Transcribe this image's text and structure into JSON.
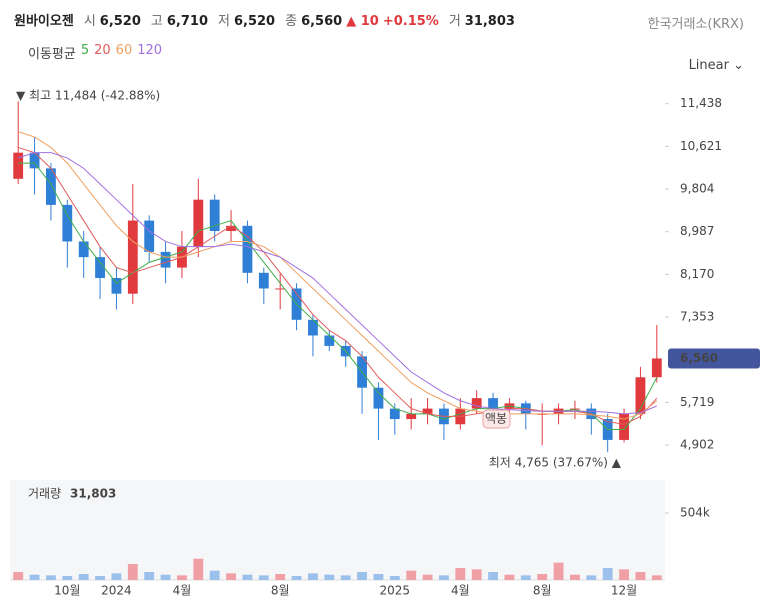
{
  "header": {
    "name": "원바이오젠",
    "open_label": "시",
    "open": "6,520",
    "high_label": "고",
    "high": "6,710",
    "low_label": "저",
    "low": "6,520",
    "close_label": "종",
    "close": "6,560",
    "change": "▲ 10",
    "change_pct": "+0.15%",
    "volume_label": "거",
    "volume": "31,803",
    "exchange": "한국거래소(KRX)",
    "scale": "Linear"
  },
  "chart_data": [
    {
      "type": "candlestick",
      "legend_title": "이동평균",
      "categories": [
        null,
        null,
        null,
        "10월",
        null,
        null,
        "2024",
        null,
        null,
        null,
        "4월",
        null,
        null,
        null,
        null,
        null,
        "8월",
        null,
        null,
        null,
        null,
        null,
        null,
        "2025",
        null,
        null,
        null,
        "4월",
        null,
        null,
        null,
        null,
        "8월",
        null,
        null,
        null,
        null,
        "12월",
        null,
        null
      ],
      "open": [
        10000,
        10500,
        10200,
        9500,
        8800,
        8500,
        8100,
        7800,
        9200,
        8600,
        8300,
        8700,
        9600,
        9000,
        9100,
        8200,
        7900,
        7900,
        7300,
        7000,
        6800,
        6600,
        6000,
        5600,
        5400,
        5500,
        5600,
        5300,
        5600,
        5800,
        5600,
        5700,
        5500,
        5500,
        5600,
        5600,
        5400,
        5000,
        5500,
        6200
      ],
      "high": [
        11484,
        10800,
        10300,
        9600,
        9000,
        8700,
        8300,
        9900,
        9300,
        8800,
        9000,
        10000,
        9700,
        9400,
        9200,
        8300,
        8200,
        8000,
        7400,
        7100,
        6900,
        6700,
        6100,
        5700,
        5800,
        5800,
        5700,
        5800,
        5950,
        5900,
        5800,
        5750,
        5700,
        5700,
        5750,
        5700,
        5500,
        5600,
        6400,
        7200
      ],
      "low": [
        9900,
        9700,
        9200,
        8300,
        8100,
        7700,
        7500,
        7600,
        8400,
        8000,
        8100,
        8500,
        8800,
        8800,
        8000,
        7600,
        7500,
        7100,
        6600,
        6700,
        6400,
        5500,
        5000,
        5100,
        5200,
        5300,
        5000,
        5200,
        5500,
        5400,
        5400,
        5200,
        4900,
        5300,
        5400,
        5100,
        4765,
        4950,
        5400,
        6100
      ],
      "close": [
        10500,
        10200,
        9500,
        8800,
        8500,
        8100,
        7800,
        9200,
        8600,
        8300,
        8700,
        9600,
        9000,
        9100,
        8200,
        7900,
        7900,
        7300,
        7000,
        6800,
        6600,
        6000,
        5600,
        5400,
        5500,
        5600,
        5300,
        5600,
        5800,
        5600,
        5700,
        5500,
        5500,
        5600,
        5600,
        5400,
        5000,
        5500,
        6200,
        6560
      ],
      "up_color": "#e0393e",
      "down_color": "#2f7fd6",
      "series": [
        {
          "name": "5",
          "color": "#3fae49",
          "values": [
            10300,
            10300,
            9900,
            9300,
            8800,
            8400,
            8000,
            8200,
            8400,
            8500,
            8600,
            9000,
            9100,
            9200,
            8800,
            8400,
            8000,
            7600,
            7300,
            7000,
            6700,
            6300,
            5900,
            5600,
            5500,
            5500,
            5400,
            5500,
            5600,
            5600,
            5650,
            5600,
            5550,
            5550,
            5580,
            5500,
            5200,
            5200,
            5600,
            6200
          ]
        },
        {
          "name": "20",
          "color": "#e05a5a",
          "values": [
            10600,
            10500,
            10200,
            9700,
            9200,
            8700,
            8300,
            8200,
            8300,
            8400,
            8500,
            8700,
            8900,
            9100,
            8900,
            8600,
            8200,
            7800,
            7400,
            7100,
            6900,
            6600,
            6200,
            5900,
            5600,
            5500,
            5450,
            5450,
            5500,
            5550,
            5600,
            5600,
            5550,
            5550,
            5550,
            5500,
            5350,
            5300,
            5450,
            5800
          ]
        },
        {
          "name": "60",
          "color": "#f0a060",
          "values": [
            10900,
            10800,
            10600,
            10300,
            9900,
            9500,
            9100,
            8800,
            8600,
            8500,
            8500,
            8600,
            8700,
            8800,
            8800,
            8700,
            8500,
            8200,
            7900,
            7600,
            7300,
            7000,
            6700,
            6400,
            6100,
            5900,
            5750,
            5600,
            5550,
            5500,
            5500,
            5500,
            5500,
            5500,
            5500,
            5480,
            5450,
            5400,
            5500,
            5750
          ]
        },
        {
          "name": "120",
          "color": "#a070e0",
          "values": [
            10400,
            10500,
            10500,
            10400,
            10200,
            9900,
            9600,
            9300,
            9000,
            8800,
            8700,
            8700,
            8700,
            8750,
            8700,
            8600,
            8500,
            8300,
            8100,
            7800,
            7500,
            7200,
            6900,
            6600,
            6300,
            6100,
            5900,
            5750,
            5650,
            5600,
            5580,
            5560,
            5550,
            5550,
            5550,
            5550,
            5530,
            5500,
            5520,
            5650
          ]
        }
      ],
      "ylim": [
        4520,
        11700
      ],
      "yticks": [
        {
          "value": 11438,
          "label": "11,438"
        },
        {
          "value": 10621,
          "label": "10,621"
        },
        {
          "value": 9804,
          "label": "9,804"
        },
        {
          "value": 8987,
          "label": "8,987"
        },
        {
          "value": 8170,
          "label": "8,170"
        },
        {
          "value": 7353,
          "label": "7,353"
        },
        {
          "value": 5719,
          "label": "5,719"
        },
        {
          "value": 4902,
          "label": "4,902"
        }
      ],
      "max_label": "▼ 최고 11,484 (-42.88%)",
      "min_label": "최저 4,765 (37.67%) ▲",
      "marker_label": "액봉",
      "last_label": "6,560"
    },
    {
      "type": "bar",
      "title": "거래량",
      "title_value": "31,803",
      "values": [
        60000,
        40000,
        35000,
        30000,
        45000,
        30000,
        50000,
        120000,
        60000,
        40000,
        35000,
        160000,
        70000,
        50000,
        40000,
        35000,
        45000,
        30000,
        50000,
        40000,
        35000,
        60000,
        45000,
        30000,
        70000,
        40000,
        35000,
        90000,
        80000,
        60000,
        40000,
        35000,
        45000,
        130000,
        40000,
        35000,
        90000,
        80000,
        60000,
        35000
      ],
      "ylim": [
        0,
        752000
      ],
      "yticks": [
        {
          "value": 504000,
          "label": "504k"
        }
      ]
    }
  ]
}
